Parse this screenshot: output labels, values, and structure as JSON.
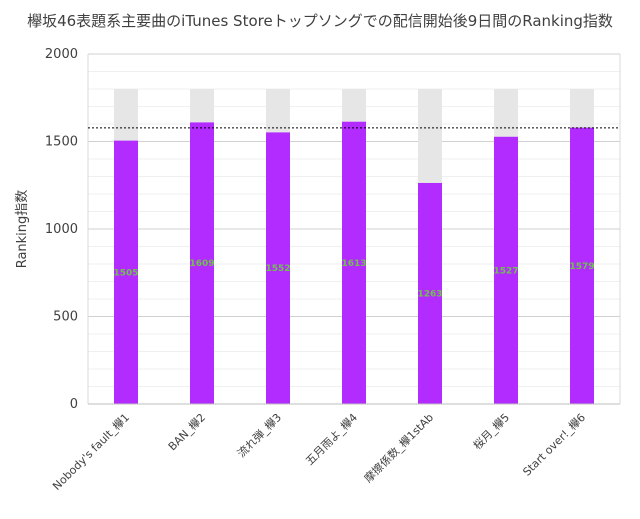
{
  "chart_data": {
    "type": "bar",
    "title": "欅坂46表題系主要曲のiTunes Storeトップソングでの配信開始後9日間のRanking指数",
    "ylabel": "Ranking指数",
    "xlabel": "",
    "ylim": [
      0,
      2000
    ],
    "yticks": [
      0,
      500,
      1000,
      1500,
      2000
    ],
    "categories": [
      "Nobody's fault_欅1",
      "BAN_欅2",
      "流れ弾_欅3",
      "五月雨よ_欅4",
      "摩擦係数_欅1stAb",
      "桜月_欅5",
      "Start over!_欅6"
    ],
    "values": [
      1505,
      1609,
      1552,
      1613,
      1263,
      1527,
      1579
    ],
    "max_reference": 1800,
    "reference_line": 1578,
    "grid": true,
    "legend": "none",
    "colors": {
      "bar": "#b22bff",
      "background_bar": "#e6e6e6",
      "label": "#6fc24a"
    }
  }
}
